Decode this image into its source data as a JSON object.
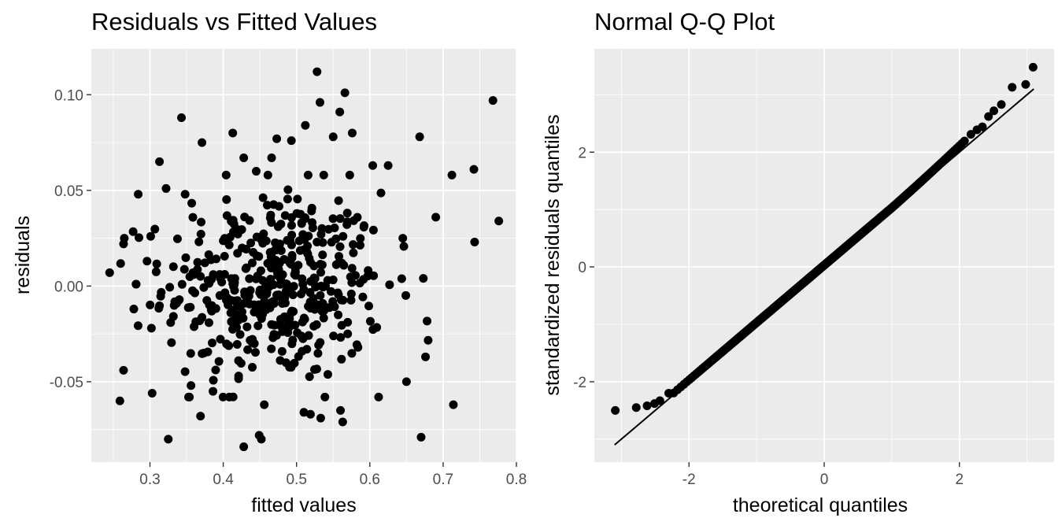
{
  "chart_data": [
    {
      "type": "scatter",
      "title": "Residuals vs Fitted Values",
      "xlabel": "fitted values",
      "ylabel": "residuals",
      "xlim": [
        0.22,
        0.8
      ],
      "ylim": [
        -0.092,
        0.124
      ],
      "x_ticks": [
        0.3,
        0.4,
        0.5,
        0.6,
        0.7,
        0.8
      ],
      "x_tick_labels": [
        "0.3",
        "0.4",
        "0.5",
        "0.6",
        "0.7",
        "0.8"
      ],
      "y_ticks": [
        -0.05,
        0.0,
        0.05,
        0.1
      ],
      "y_tick_labels": [
        "-0.05",
        "0.00",
        "0.05",
        "0.10"
      ],
      "grid": true,
      "background": "#ebebeb",
      "point_color": "#000000",
      "point_count": 500,
      "points_described": "cloud centered near fitted 0.47, residual 0.00; roughly constant spread (sd about 0.03); notable points listed",
      "points": [
        [
          0.245,
          0.007
        ],
        [
          0.259,
          -0.06
        ],
        [
          0.264,
          -0.044
        ],
        [
          0.265,
          0.025
        ],
        [
          0.264,
          0.022
        ],
        [
          0.278,
          -0.012
        ],
        [
          0.281,
          0.001
        ],
        [
          0.284,
          0.048
        ],
        [
          0.296,
          0.013
        ],
        [
          0.301,
          0.026
        ],
        [
          0.302,
          -0.022
        ],
        [
          0.303,
          -0.056
        ],
        [
          0.313,
          0.065
        ],
        [
          0.322,
          0.051
        ],
        [
          0.325,
          -0.08
        ],
        [
          0.343,
          0.088
        ],
        [
          0.348,
          0.048
        ],
        [
          0.356,
          -0.052
        ],
        [
          0.369,
          -0.068
        ],
        [
          0.371,
          0.075
        ],
        [
          0.386,
          -0.055
        ],
        [
          0.404,
          0.058
        ],
        [
          0.413,
          0.08
        ],
        [
          0.421,
          -0.047
        ],
        [
          0.428,
          0.067
        ],
        [
          0.428,
          -0.084
        ],
        [
          0.445,
          0.06
        ],
        [
          0.449,
          -0.078
        ],
        [
          0.452,
          -0.08
        ],
        [
          0.456,
          -0.062
        ],
        [
          0.466,
          0.067
        ],
        [
          0.473,
          0.077
        ],
        [
          0.493,
          0.076
        ],
        [
          0.51,
          -0.066
        ],
        [
          0.512,
          0.084
        ],
        [
          0.519,
          -0.067
        ],
        [
          0.528,
          0.112
        ],
        [
          0.532,
          0.096
        ],
        [
          0.533,
          -0.069
        ],
        [
          0.55,
          0.078
        ],
        [
          0.559,
          0.091
        ],
        [
          0.56,
          -0.065
        ],
        [
          0.563,
          -0.071
        ],
        [
          0.566,
          0.101
        ],
        [
          0.576,
          0.08
        ],
        [
          0.604,
          0.063
        ],
        [
          0.612,
          -0.058
        ],
        [
          0.625,
          0.063
        ],
        [
          0.645,
          0.025
        ],
        [
          0.65,
          -0.05
        ],
        [
          0.668,
          0.078
        ],
        [
          0.67,
          -0.079
        ],
        [
          0.673,
          0.004
        ],
        [
          0.676,
          -0.037
        ],
        [
          0.69,
          0.036
        ],
        [
          0.712,
          0.058
        ],
        [
          0.714,
          -0.062
        ],
        [
          0.742,
          0.061
        ],
        [
          0.743,
          0.023
        ],
        [
          0.768,
          0.097
        ],
        [
          0.776,
          0.034
        ]
      ]
    },
    {
      "type": "scatter",
      "title": "Normal Q-Q Plot",
      "xlabel": "theoretical quantiles",
      "ylabel": "standardized residuals quantiles",
      "xlim": [
        -3.4,
        3.4
      ],
      "ylim": [
        -3.4,
        3.8
      ],
      "x_ticks": [
        -2,
        0,
        2
      ],
      "x_tick_labels": [
        "-2",
        "0",
        "2"
      ],
      "y_ticks": [
        -2,
        0,
        2
      ],
      "y_tick_labels": [
        "-2",
        "0",
        "2"
      ],
      "grid": true,
      "background": "#ebebeb",
      "point_color": "#000000",
      "point_count": 500,
      "reference_line": {
        "from": [
          -3.1,
          -3.1
        ],
        "to": [
          3.1,
          3.1
        ],
        "color": "#000000"
      },
      "series": [
        {
          "values_described": "500 sample quantiles vs theoretical normal quantiles; points follow the reference line closely, slight lower left-tail lift and heavier right tail",
          "tail_points": [
            [
              -3.09,
              -2.5
            ],
            [
              -2.78,
              -2.45
            ],
            [
              -2.62,
              -2.42
            ],
            [
              -2.51,
              -2.38
            ],
            [
              -2.43,
              -2.33
            ],
            [
              -2.3,
              -2.2
            ],
            [
              2.17,
              2.31
            ],
            [
              2.26,
              2.39
            ],
            [
              2.34,
              2.44
            ],
            [
              2.43,
              2.62
            ],
            [
              2.51,
              2.72
            ],
            [
              2.62,
              2.83
            ],
            [
              2.78,
              3.13
            ],
            [
              2.98,
              3.18
            ],
            [
              3.09,
              3.48
            ]
          ]
        }
      ]
    }
  ]
}
